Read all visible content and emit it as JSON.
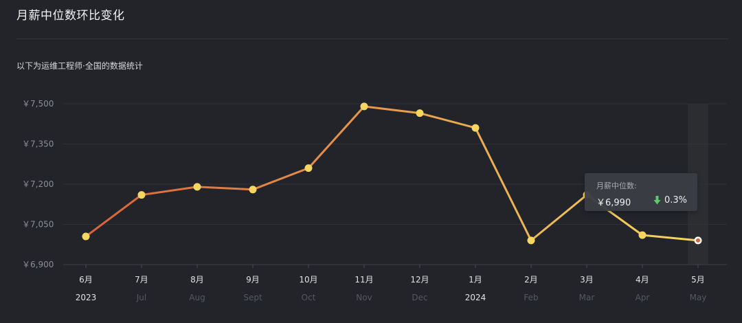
{
  "page": {
    "title": "月薪中位数环比变化",
    "subtitle": "以下为运维工程师·全国的数据统计"
  },
  "tooltip": {
    "label": "月薪中位数:",
    "value": "￥6,990",
    "change": "0.3%",
    "change_direction": "down",
    "change_color": "#5cc96b"
  },
  "chart_data": {
    "type": "line",
    "title": "",
    "xlabel": "",
    "ylabel": "",
    "ylim": [
      6900,
      7500
    ],
    "yticks": [
      6900,
      7050,
      7200,
      7350,
      7500
    ],
    "ytick_labels": [
      "￥6,900",
      "￥7,050",
      "￥7,200",
      "￥7,350",
      "￥7,500"
    ],
    "categories": [
      "6月",
      "7月",
      "8月",
      "9月",
      "10月",
      "11月",
      "12月",
      "1月",
      "2月",
      "3月",
      "4月",
      "5月"
    ],
    "sub_labels": [
      "2023",
      "Jul",
      "Aug",
      "Sept",
      "Oct",
      "Nov",
      "Dec",
      "2024",
      "Feb",
      "Mar",
      "Apr",
      "May"
    ],
    "year_labels": [
      "2023",
      "2024"
    ],
    "values": [
      7005,
      7160,
      7190,
      7180,
      7260,
      7490,
      7465,
      7410,
      6990,
      7160,
      7010,
      6990
    ],
    "highlighted_index": 11,
    "grid": true,
    "line_color_start": "#d9623a",
    "line_color_end": "#f5d660",
    "point_color": "#f5d660",
    "highlight_point_color": "#d9623a"
  }
}
